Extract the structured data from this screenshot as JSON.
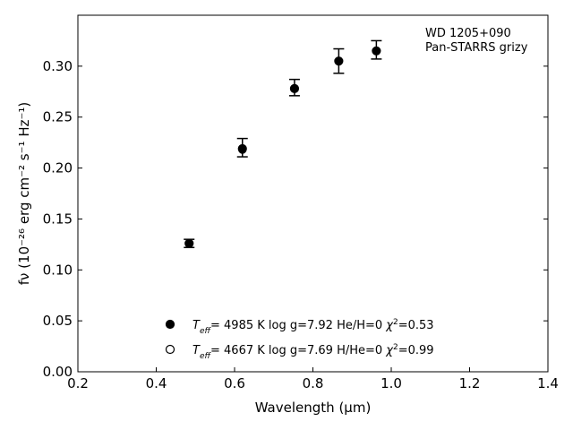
{
  "chart_data": {
    "type": "scatter",
    "title": "",
    "xlabel": "Wavelength (μm)",
    "ylabel": "fν (10⁻²⁶ erg cm⁻² s⁻¹ Hz⁻¹)",
    "xlim": [
      0.2,
      1.4
    ],
    "ylim": [
      0.0,
      0.35
    ],
    "xticks": [
      "0.2",
      "0.4",
      "0.6",
      "0.8",
      "1.0",
      "1.2",
      "1.4"
    ],
    "yticks": [
      "0.00",
      "0.05",
      "0.10",
      "0.15",
      "0.20",
      "0.25",
      "0.30"
    ],
    "grid": false,
    "annotation": [
      "WD 1205+090",
      "Pan-STARRS grizy"
    ],
    "observed": {
      "x": [
        0.484,
        0.62,
        0.753,
        0.866,
        0.962
      ],
      "y": [
        0.126,
        0.22,
        0.279,
        0.305,
        0.316
      ],
      "yerr": [
        0.004,
        0.009,
        0.008,
        0.012,
        0.009
      ]
    },
    "series": [
      {
        "name": "Teff= 4985 K log g=7.92 He/H=0 χ²=0.53",
        "label": {
          "teff": "4985",
          "logg": "7.92",
          "comp": "He/H=0",
          "chi2": "0.53"
        },
        "marker": "filled-circle",
        "x": [
          0.484,
          0.62,
          0.753,
          0.866,
          0.962
        ],
        "y": [
          0.126,
          0.219,
          0.278,
          0.305,
          0.315
        ]
      },
      {
        "name": "Teff= 4667 K log g=7.69 H/He=0 χ²=0.99",
        "label": {
          "teff": "4667",
          "logg": "7.69",
          "comp": "H/He=0",
          "chi2": "0.99"
        },
        "marker": "open-circle",
        "x": [
          0.484,
          0.62,
          0.753,
          0.866,
          0.962
        ],
        "y": [
          0.126,
          0.218,
          0.278,
          0.305,
          0.315
        ]
      }
    ],
    "legend_position": "bottom-center"
  }
}
